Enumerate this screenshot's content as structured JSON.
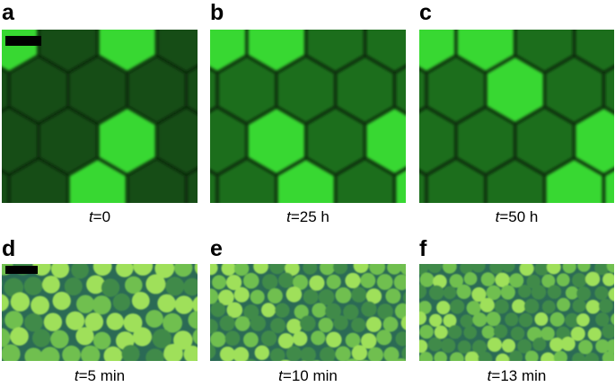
{
  "panels": [
    {
      "letter": "a",
      "caption_var": "t",
      "caption_value": "=0",
      "has_scale_bar": true,
      "kind": "hex"
    },
    {
      "letter": "b",
      "caption_var": "t",
      "caption_value": "=25 h",
      "has_scale_bar": false,
      "kind": "hex"
    },
    {
      "letter": "c",
      "caption_var": "t",
      "caption_value": "=50 h",
      "has_scale_bar": false,
      "kind": "hex"
    },
    {
      "letter": "d",
      "caption_var": "t",
      "caption_value": "=5 min",
      "has_scale_bar": true,
      "kind": "drops"
    },
    {
      "letter": "e",
      "caption_var": "t",
      "caption_value": "=10 min",
      "has_scale_bar": false,
      "kind": "drops"
    },
    {
      "letter": "f",
      "caption_var": "t",
      "caption_value": "=13 min",
      "has_scale_bar": false,
      "kind": "drops"
    }
  ],
  "colors": {
    "bright_green": "#39d832",
    "dark_green": "#134d13",
    "mid_green": "#1f6e1f",
    "background_dark": "#0b2a0b",
    "drop_bright": "#9fe05a",
    "drop_mid": "#6fbf4f",
    "drop_dim": "#3f8a4a",
    "drop_background": "#2b6a55"
  }
}
